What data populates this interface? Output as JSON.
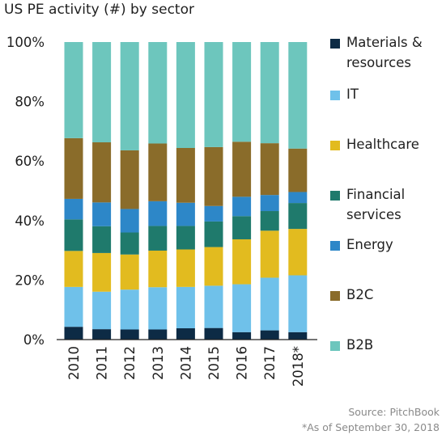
{
  "chart_data": {
    "type": "bar",
    "stacked": true,
    "title": "US PE activity (#) by sector",
    "categories": [
      "2010",
      "2011",
      "2012",
      "2013",
      "2014",
      "2015",
      "2016",
      "2017",
      "2018*"
    ],
    "ylim": [
      0,
      100
    ],
    "yticks": [
      "0%",
      "20%",
      "40%",
      "60%",
      "80%",
      "100%"
    ],
    "series": [
      {
        "name": "Materials & resources",
        "color": "#0d2b45",
        "values": [
          4.3,
          3.5,
          3.4,
          3.4,
          3.8,
          3.9,
          2.5,
          3.1,
          2.5
        ]
      },
      {
        "name": "IT",
        "color": "#6fc1ea",
        "values": [
          13.4,
          12.6,
          13.4,
          14.2,
          13.9,
          14.2,
          16.1,
          17.7,
          19.1
        ]
      },
      {
        "name": "Healthcare",
        "color": "#e2bb1f",
        "values": [
          12.1,
          13.0,
          11.8,
          12.3,
          12.6,
          13.0,
          15.1,
          15.8,
          15.6
        ]
      },
      {
        "name": "Financial services",
        "color": "#1f7a6c",
        "values": [
          10.6,
          9.0,
          7.4,
          8.3,
          7.9,
          8.6,
          7.8,
          6.6,
          8.7
        ]
      },
      {
        "name": "Energy",
        "color": "#2d87c8",
        "values": [
          6.9,
          8.0,
          7.9,
          8.3,
          7.8,
          5.2,
          6.5,
          5.4,
          3.7
        ]
      },
      {
        "name": "B2C",
        "color": "#8a6c2a",
        "values": [
          20.4,
          20.2,
          19.7,
          19.4,
          18.4,
          19.8,
          18.5,
          17.4,
          14.6
        ]
      },
      {
        "name": "B2B",
        "color": "#6dc6bd",
        "values": [
          32.3,
          33.7,
          36.4,
          34.1,
          35.6,
          35.3,
          33.5,
          34.0,
          35.8
        ]
      }
    ],
    "legend_position": "right",
    "legend_order": [
      "Materials & resources",
      "IT",
      "Healthcare",
      "Financial services",
      "Energy",
      "B2C",
      "B2B"
    ],
    "legend_labels": [
      "Materials &\nresources",
      "IT",
      "Healthcare",
      "Financial\nservices",
      "Energy",
      "B2C",
      "B2B"
    ],
    "grid": false
  },
  "footer": {
    "source": "Source: PitchBook",
    "note": "*As of September 30, 2018"
  }
}
